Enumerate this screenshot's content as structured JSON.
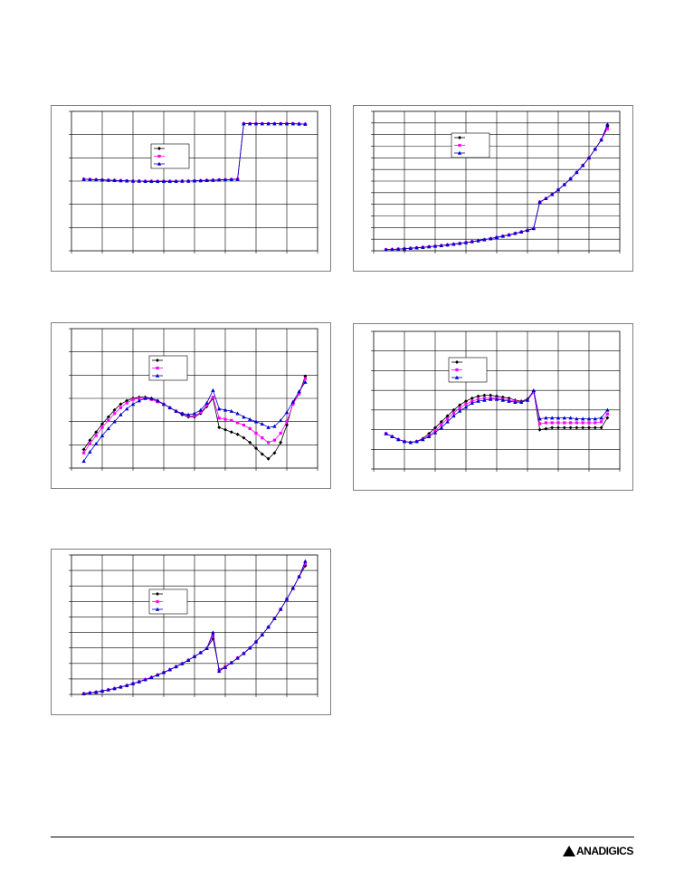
{
  "colors": {
    "series_a": "#000000",
    "series_b": "#ff00ff",
    "series_c": "#0000cc",
    "grid": "#000000",
    "frame": "#7f7f7f"
  },
  "footer": {
    "logo_text": "ANADIGICS"
  },
  "chart_data": [
    {
      "type": "line",
      "grid": true,
      "legend": "top-center",
      "x": [
        0,
        1,
        2,
        3,
        4,
        5,
        6,
        7,
        8,
        9,
        10,
        11,
        12,
        13,
        14,
        15,
        16,
        17,
        18,
        19,
        20,
        21,
        22,
        23,
        24,
        25,
        26,
        27,
        28,
        29,
        30,
        31,
        32,
        33,
        34,
        35,
        36
      ],
      "xlim": [
        -2,
        38
      ],
      "ylim": [
        0,
        6
      ],
      "series": [
        {
          "values": [
            3.08,
            3.07,
            3.06,
            3.05,
            3.04,
            3.03,
            3.02,
            3.01,
            3.0,
            3.0,
            2.99,
            2.99,
            2.99,
            2.99,
            2.99,
            2.99,
            3.0,
            3.0,
            3.01,
            3.02,
            3.03,
            3.04,
            3.05,
            3.06,
            3.07,
            3.08,
            5.47,
            5.47,
            5.47,
            5.47,
            5.47,
            5.47,
            5.47,
            5.47,
            5.47,
            5.46,
            5.45
          ]
        },
        {
          "values": [
            3.08,
            3.07,
            3.06,
            3.05,
            3.04,
            3.03,
            3.02,
            3.01,
            3.0,
            3.0,
            2.99,
            2.99,
            2.99,
            2.99,
            2.99,
            2.99,
            3.0,
            3.0,
            3.01,
            3.02,
            3.03,
            3.04,
            3.05,
            3.06,
            3.07,
            3.08,
            5.47,
            5.47,
            5.47,
            5.47,
            5.47,
            5.47,
            5.47,
            5.47,
            5.47,
            5.46,
            5.45
          ]
        },
        {
          "values": [
            3.08,
            3.07,
            3.06,
            3.05,
            3.04,
            3.03,
            3.02,
            3.01,
            3.0,
            3.0,
            2.99,
            2.99,
            2.99,
            2.99,
            2.99,
            2.99,
            3.0,
            3.0,
            3.01,
            3.02,
            3.03,
            3.04,
            3.05,
            3.06,
            3.07,
            3.08,
            5.47,
            5.47,
            5.47,
            5.47,
            5.47,
            5.47,
            5.47,
            5.47,
            5.47,
            5.46,
            5.45
          ]
        }
      ]
    },
    {
      "type": "line",
      "grid": true,
      "legend": "top-center",
      "x": [
        0,
        1,
        2,
        3,
        4,
        5,
        6,
        7,
        8,
        9,
        10,
        11,
        12,
        13,
        14,
        15,
        16,
        17,
        18,
        19,
        20,
        21,
        22,
        23,
        24,
        25,
        26,
        27,
        28,
        29,
        30,
        31,
        32,
        33,
        34,
        35,
        36
      ],
      "xlim": [
        -2,
        38
      ],
      "ylim": [
        0,
        12
      ],
      "series": [
        {
          "values": [
            0.1,
            0.12,
            0.15,
            0.18,
            0.22,
            0.26,
            0.3,
            0.35,
            0.4,
            0.45,
            0.51,
            0.57,
            0.64,
            0.71,
            0.79,
            0.87,
            0.96,
            1.05,
            1.15,
            1.26,
            1.37,
            1.5,
            1.63,
            1.77,
            1.92,
            4.2,
            4.5,
            4.85,
            5.25,
            5.7,
            6.2,
            6.75,
            7.35,
            8.0,
            8.75,
            9.55,
            10.7
          ]
        },
        {
          "values": [
            0.1,
            0.12,
            0.15,
            0.18,
            0.22,
            0.26,
            0.3,
            0.35,
            0.4,
            0.45,
            0.51,
            0.57,
            0.64,
            0.71,
            0.79,
            0.87,
            0.96,
            1.05,
            1.15,
            1.26,
            1.37,
            1.5,
            1.63,
            1.77,
            1.92,
            4.2,
            4.5,
            4.85,
            5.25,
            5.7,
            6.2,
            6.75,
            7.35,
            8.0,
            8.75,
            9.55,
            10.5
          ]
        },
        {
          "values": [
            0.1,
            0.12,
            0.15,
            0.18,
            0.22,
            0.26,
            0.3,
            0.35,
            0.4,
            0.45,
            0.51,
            0.57,
            0.64,
            0.71,
            0.79,
            0.87,
            0.96,
            1.05,
            1.15,
            1.26,
            1.37,
            1.5,
            1.63,
            1.77,
            1.92,
            4.2,
            4.5,
            4.85,
            5.25,
            5.7,
            6.2,
            6.75,
            7.35,
            8.0,
            8.75,
            9.55,
            10.9
          ]
        }
      ]
    },
    {
      "type": "line",
      "grid": true,
      "legend": "top-center",
      "x": [
        0,
        1,
        2,
        3,
        4,
        5,
        6,
        7,
        8,
        9,
        10,
        11,
        12,
        13,
        14,
        15,
        16,
        17,
        18,
        19,
        20,
        21,
        22,
        23,
        24,
        25,
        26,
        27,
        28,
        29,
        30,
        31,
        32,
        33,
        34,
        35,
        36
      ],
      "xlim": [
        -2,
        38
      ],
      "ylim": [
        0,
        6
      ],
      "series": [
        {
          "values": [
            0.8,
            1.2,
            1.55,
            1.9,
            2.2,
            2.5,
            2.75,
            2.9,
            3.0,
            3.05,
            3.05,
            3.0,
            2.9,
            2.75,
            2.6,
            2.45,
            2.3,
            2.2,
            2.2,
            2.35,
            2.65,
            3.0,
            1.75,
            1.65,
            1.55,
            1.45,
            1.3,
            1.1,
            0.85,
            0.6,
            0.4,
            0.65,
            1.1,
            1.85,
            2.8,
            3.2,
            3.95
          ]
        },
        {
          "values": [
            0.65,
            1.05,
            1.4,
            1.75,
            2.05,
            2.35,
            2.6,
            2.8,
            2.95,
            3.0,
            3.0,
            2.95,
            2.85,
            2.75,
            2.6,
            2.45,
            2.35,
            2.25,
            2.25,
            2.4,
            2.7,
            3.05,
            2.15,
            2.1,
            2.05,
            1.95,
            1.85,
            1.7,
            1.5,
            1.3,
            1.1,
            1.2,
            1.5,
            2.0,
            2.75,
            3.2,
            3.85
          ]
        },
        {
          "values": [
            0.3,
            0.7,
            1.05,
            1.4,
            1.7,
            2.0,
            2.3,
            2.55,
            2.75,
            2.9,
            3.0,
            3.0,
            2.9,
            2.75,
            2.6,
            2.45,
            2.35,
            2.3,
            2.35,
            2.5,
            2.8,
            3.35,
            2.55,
            2.5,
            2.45,
            2.35,
            2.2,
            2.1,
            2.0,
            1.9,
            1.75,
            1.8,
            2.05,
            2.4,
            2.85,
            3.3,
            3.7
          ]
        }
      ]
    },
    {
      "type": "line",
      "grid": true,
      "legend": "top-center",
      "x": [
        0,
        1,
        2,
        3,
        4,
        5,
        6,
        7,
        8,
        9,
        10,
        11,
        12,
        13,
        14,
        15,
        16,
        17,
        18,
        19,
        20,
        21,
        22,
        23,
        24,
        25,
        26,
        27,
        28,
        29,
        30,
        31,
        32,
        33,
        34,
        35,
        36
      ],
      "xlim": [
        -2,
        38
      ],
      "ylim": [
        0,
        7
      ],
      "series": [
        {
          "values": [
            1.8,
            1.65,
            1.5,
            1.4,
            1.35,
            1.4,
            1.55,
            1.8,
            2.1,
            2.4,
            2.7,
            3.0,
            3.25,
            3.45,
            3.6,
            3.7,
            3.75,
            3.75,
            3.7,
            3.65,
            3.6,
            3.5,
            3.45,
            3.55,
            3.95,
            2.0,
            2.05,
            2.1,
            2.1,
            2.1,
            2.1,
            2.1,
            2.1,
            2.1,
            2.1,
            2.1,
            2.6
          ]
        },
        {
          "values": [
            1.8,
            1.65,
            1.5,
            1.4,
            1.35,
            1.4,
            1.5,
            1.7,
            1.95,
            2.25,
            2.55,
            2.85,
            3.1,
            3.3,
            3.45,
            3.55,
            3.6,
            3.6,
            3.6,
            3.55,
            3.5,
            3.45,
            3.4,
            3.5,
            3.9,
            2.3,
            2.35,
            2.35,
            2.35,
            2.35,
            2.35,
            2.35,
            2.35,
            2.35,
            2.35,
            2.4,
            2.8
          ]
        },
        {
          "values": [
            1.8,
            1.65,
            1.5,
            1.4,
            1.35,
            1.4,
            1.5,
            1.65,
            1.85,
            2.1,
            2.4,
            2.7,
            2.95,
            3.15,
            3.35,
            3.45,
            3.5,
            3.55,
            3.55,
            3.5,
            3.45,
            3.4,
            3.4,
            3.5,
            4.0,
            2.55,
            2.6,
            2.6,
            2.6,
            2.6,
            2.6,
            2.55,
            2.55,
            2.55,
            2.55,
            2.6,
            3.0
          ]
        }
      ]
    },
    {
      "type": "line",
      "grid": true,
      "legend": "top-center",
      "x": [
        0,
        1,
        2,
        3,
        4,
        5,
        6,
        7,
        8,
        9,
        10,
        11,
        12,
        13,
        14,
        15,
        16,
        17,
        18,
        19,
        20,
        21,
        22,
        23,
        24,
        25,
        26,
        27,
        28,
        29,
        30,
        31,
        32,
        33,
        34,
        35,
        36
      ],
      "xlim": [
        -2,
        38
      ],
      "ylim": [
        0,
        9
      ],
      "series": [
        {
          "values": [
            0.05,
            0.1,
            0.15,
            0.22,
            0.3,
            0.38,
            0.48,
            0.58,
            0.7,
            0.82,
            0.96,
            1.1,
            1.26,
            1.42,
            1.6,
            1.79,
            1.99,
            2.21,
            2.45,
            2.7,
            2.97,
            3.6,
            1.6,
            1.8,
            2.05,
            2.35,
            2.65,
            3.0,
            3.4,
            3.85,
            4.35,
            4.9,
            5.5,
            6.15,
            6.85,
            7.6,
            8.3
          ]
        },
        {
          "values": [
            0.05,
            0.1,
            0.15,
            0.22,
            0.3,
            0.38,
            0.48,
            0.58,
            0.7,
            0.82,
            0.96,
            1.1,
            1.26,
            1.42,
            1.6,
            1.79,
            1.99,
            2.21,
            2.45,
            2.7,
            2.97,
            3.8,
            1.55,
            1.8,
            2.05,
            2.35,
            2.65,
            3.0,
            3.4,
            3.85,
            4.35,
            4.9,
            5.5,
            6.15,
            6.85,
            7.6,
            8.45
          ]
        },
        {
          "values": [
            0.05,
            0.1,
            0.15,
            0.22,
            0.3,
            0.38,
            0.48,
            0.58,
            0.7,
            0.82,
            0.96,
            1.1,
            1.26,
            1.42,
            1.6,
            1.79,
            1.99,
            2.21,
            2.45,
            2.7,
            2.97,
            4.0,
            1.5,
            1.75,
            2.05,
            2.35,
            2.65,
            3.0,
            3.4,
            3.85,
            4.35,
            4.9,
            5.5,
            6.15,
            6.85,
            7.6,
            8.6
          ]
        }
      ]
    }
  ]
}
